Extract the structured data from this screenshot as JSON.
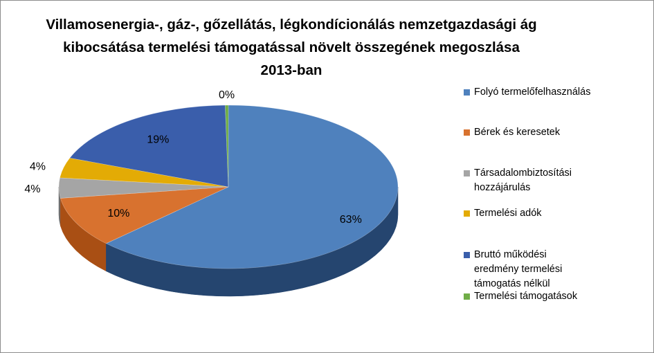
{
  "chart_data": {
    "type": "pie",
    "title_lines": [
      "Villamosenergia-, gáz-, gőzellátás, légkondícionálás  nemzetgazdasági ág",
      "kibocsátása termelési támogatással növelt összegének megoszlása",
      "2013-ban"
    ],
    "slices": [
      {
        "name": "Folyó termelőfelhasználás",
        "value": 63,
        "label": "63%",
        "color": "#4f81bd",
        "side": "#25456f"
      },
      {
        "name": "Bérek és keresetek",
        "value": 10,
        "label": "10%",
        "color": "#d8722f",
        "side": "#a94f14"
      },
      {
        "name": "Társadalombiztosítási hozzájárulás",
        "value": 4,
        "label": "4%",
        "color": "#a5a5a5",
        "side": "#6f6f6f"
      },
      {
        "name": "Termelési adók",
        "value": 4,
        "label": "4%",
        "color": "#e3ab05",
        "side": "#a87e02"
      },
      {
        "name": "Bruttó működési eredmény termelési támogatás nélkül",
        "value": 19,
        "label": "19%",
        "color": "#3a5eab",
        "side": "#243c70"
      },
      {
        "name": "Termelési támogatások",
        "value": 0.3,
        "label": "0%",
        "color": "#70ad47",
        "side": "#4a7a2c"
      }
    ],
    "legend_position": "right"
  }
}
